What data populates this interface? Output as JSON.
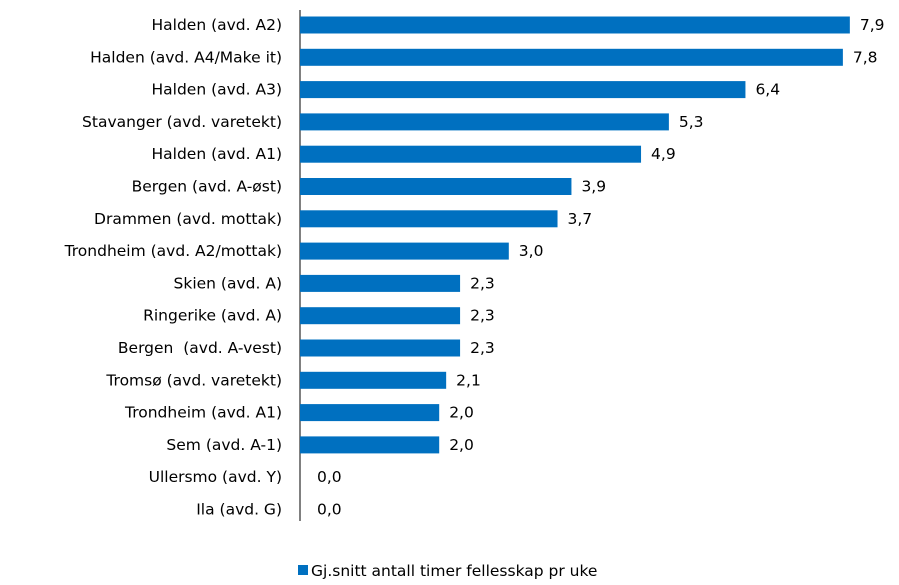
{
  "chart_data": {
    "type": "bar",
    "orientation": "horizontal",
    "categories": [
      "Halden (avd. A2)",
      "Halden (avd. A4/Make it)",
      "Halden (avd. A3)",
      "Stavanger (avd. varetekt)",
      "Halden (avd. A1)",
      "Bergen (avd. A-øst)",
      "Drammen (avd. mottak)",
      "Trondheim (avd. A2/mottak)",
      "Skien (avd. A)",
      "Ringerike (avd. A)",
      "Bergen  (avd. A-vest)",
      "Tromsø (avd. varetekt)",
      "Trondheim (avd. A1)",
      "Sem (avd. A-1)",
      "Ullersmo (avd. Y)",
      "Ila (avd. G)"
    ],
    "series": [
      {
        "name": "Gj.snitt antall timer fellesskap pr uke",
        "color": "#0070c0",
        "values": [
          7.9,
          7.8,
          6.4,
          5.3,
          4.9,
          3.9,
          3.7,
          3.0,
          2.3,
          2.3,
          2.3,
          2.1,
          2.0,
          2.0,
          0.0,
          0.0
        ],
        "value_labels": [
          "7,9",
          "7,8",
          "6,4",
          "5,3",
          "4,9",
          "3,9",
          "3,7",
          "3,0",
          "2,3",
          "2,3",
          "2,3",
          "2,1",
          "2,0",
          "2,0",
          "0,0",
          "0,0"
        ]
      }
    ],
    "legend": "bottom"
  }
}
